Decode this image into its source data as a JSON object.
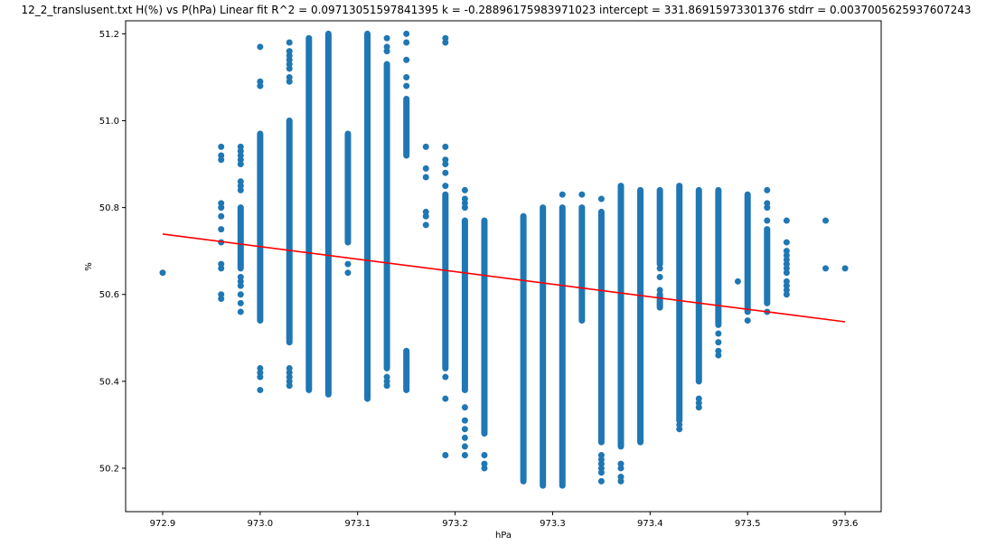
{
  "chart_data": {
    "type": "scatter",
    "title": "12_2_translusent.txt    H(%) vs P(hPa)    Linear fit    R^2 = 0.09713051597841395  k = -0.28896175983971023  intercept = 331.86915973301376  stdrr = 0.0037005625937607243",
    "xlabel": "hPa",
    "ylabel": "%",
    "xlim": [
      972.862,
      973.637
    ],
    "ylim": [
      50.1,
      51.23
    ],
    "xticks": [
      972.9,
      973.0,
      973.1,
      973.2,
      973.3,
      973.4,
      973.5,
      973.6
    ],
    "xtick_labels": [
      "972.9",
      "973.0",
      "973.1",
      "973.2",
      "973.3",
      "973.4",
      "973.5",
      "973.6"
    ],
    "yticks": [
      50.2,
      50.4,
      50.6,
      50.8,
      51.0,
      51.2
    ],
    "ytick_labels": [
      "50.2",
      "50.4",
      "50.6",
      "50.8",
      "51.0",
      "51.2"
    ],
    "grid": false,
    "colors": {
      "points": "#1f77b4",
      "fit": "#ff0000"
    },
    "series": [
      {
        "type": "scatter",
        "columns": [
          {
            "x": 972.9,
            "ymin": 50.65,
            "ymax": 50.65,
            "sparse": [
              50.65
            ]
          },
          {
            "x": 972.96,
            "ymin": 50.59,
            "ymax": 50.94,
            "sparse": [
              50.59,
              50.6,
              50.66,
              50.67,
              50.72,
              50.75,
              50.78,
              50.8,
              50.81,
              50.91,
              50.92,
              50.94
            ]
          },
          {
            "x": 972.98,
            "ymin": 50.56,
            "ymax": 50.94,
            "dense": [
              [
                50.66,
                50.8
              ]
            ],
            "sparse": [
              50.56,
              50.58,
              50.6,
              50.62,
              50.63,
              50.64,
              50.84,
              50.85,
              50.86,
              50.9,
              50.91,
              50.92,
              50.93,
              50.94
            ]
          },
          {
            "x": 973.0,
            "ymin": 50.38,
            "ymax": 51.17,
            "dense": [
              [
                50.54,
                50.97
              ]
            ],
            "sparse": [
              50.38,
              50.41,
              50.42,
              50.43,
              51.08,
              51.09,
              51.17
            ]
          },
          {
            "x": 973.03,
            "ymin": 50.39,
            "ymax": 51.18,
            "dense": [
              [
                50.49,
                51.0
              ]
            ],
            "sparse": [
              50.39,
              50.4,
              50.41,
              50.42,
              50.43,
              51.09,
              51.1,
              51.12,
              51.13,
              51.14,
              51.15,
              51.16,
              51.18
            ]
          },
          {
            "x": 973.05,
            "ymin": 50.38,
            "ymax": 51.19,
            "dense": [
              [
                50.38,
                51.19
              ]
            ]
          },
          {
            "x": 973.07,
            "ymin": 50.37,
            "ymax": 51.2,
            "dense": [
              [
                50.37,
                51.2
              ]
            ]
          },
          {
            "x": 973.09,
            "ymin": 50.65,
            "ymax": 50.97,
            "dense": [
              [
                50.72,
                50.97
              ]
            ],
            "sparse": [
              50.65,
              50.67
            ]
          },
          {
            "x": 973.11,
            "ymin": 50.36,
            "ymax": 51.2,
            "dense": [
              [
                50.36,
                51.2
              ]
            ]
          },
          {
            "x": 973.13,
            "ymin": 50.39,
            "ymax": 51.19,
            "dense": [
              [
                50.43,
                51.13
              ]
            ],
            "sparse": [
              50.39,
              50.4,
              50.41,
              51.16,
              51.17,
              51.19
            ]
          },
          {
            "x": 973.15,
            "ymin": 50.38,
            "ymax": 51.2,
            "dense": [
              [
                50.38,
                50.47
              ],
              [
                50.92,
                51.05
              ]
            ],
            "sparse": [
              51.08,
              51.1,
              51.14,
              51.18,
              51.2
            ]
          },
          {
            "x": 973.17,
            "ymin": 50.76,
            "ymax": 50.94,
            "sparse": [
              50.76,
              50.78,
              50.79,
              50.87,
              50.89,
              50.94
            ]
          },
          {
            "x": 973.19,
            "ymin": 50.23,
            "ymax": 51.19,
            "dense": [
              [
                50.43,
                50.83
              ]
            ],
            "sparse": [
              50.23,
              50.36,
              50.41,
              50.85,
              50.88,
              50.9,
              50.91,
              50.94,
              51.18,
              51.19
            ]
          },
          {
            "x": 973.21,
            "ymin": 50.23,
            "ymax": 50.84,
            "dense": [
              [
                50.38,
                50.77
              ]
            ],
            "sparse": [
              50.23,
              50.25,
              50.27,
              50.29,
              50.31,
              50.34,
              50.8,
              50.81,
              50.82,
              50.84
            ]
          },
          {
            "x": 973.23,
            "ymin": 50.2,
            "ymax": 50.77,
            "dense": [
              [
                50.28,
                50.77
              ]
            ],
            "sparse": [
              50.2,
              50.21,
              50.23
            ]
          },
          {
            "x": 973.27,
            "ymin": 50.17,
            "ymax": 50.78,
            "dense": [
              [
                50.17,
                50.78
              ]
            ]
          },
          {
            "x": 973.29,
            "ymin": 50.16,
            "ymax": 50.8,
            "dense": [
              [
                50.16,
                50.8
              ]
            ]
          },
          {
            "x": 973.31,
            "ymin": 50.16,
            "ymax": 50.83,
            "dense": [
              [
                50.16,
                50.8
              ]
            ],
            "sparse": [
              50.83
            ]
          },
          {
            "x": 973.33,
            "ymin": 50.54,
            "ymax": 50.83,
            "dense": [
              [
                50.54,
                50.8
              ]
            ],
            "sparse": [
              50.83
            ]
          },
          {
            "x": 973.35,
            "ymin": 50.17,
            "ymax": 50.82,
            "dense": [
              [
                50.26,
                50.79
              ]
            ],
            "sparse": [
              50.17,
              50.19,
              50.2,
              50.21,
              50.22,
              50.23,
              50.82
            ]
          },
          {
            "x": 973.37,
            "ymin": 50.17,
            "ymax": 50.85,
            "dense": [
              [
                50.25,
                50.85
              ]
            ],
            "sparse": [
              50.17,
              50.18,
              50.2,
              50.21
            ]
          },
          {
            "x": 973.39,
            "ymin": 50.26,
            "ymax": 50.84,
            "dense": [
              [
                50.26,
                50.84
              ]
            ]
          },
          {
            "x": 973.41,
            "ymin": 50.57,
            "ymax": 50.84,
            "dense": [
              [
                50.57,
                50.6
              ],
              [
                50.67,
                50.84
              ]
            ],
            "sparse": [
              50.61,
              50.64,
              50.66
            ]
          },
          {
            "x": 973.43,
            "ymin": 50.29,
            "ymax": 50.85,
            "dense": [
              [
                50.31,
                50.85
              ]
            ],
            "sparse": [
              50.29,
              50.3
            ]
          },
          {
            "x": 973.45,
            "ymin": 50.34,
            "ymax": 50.84,
            "dense": [
              [
                50.4,
                50.84
              ]
            ],
            "sparse": [
              50.34,
              50.35,
              50.36
            ]
          },
          {
            "x": 973.47,
            "ymin": 50.46,
            "ymax": 50.84,
            "dense": [
              [
                50.53,
                50.84
              ]
            ],
            "sparse": [
              50.46,
              50.47,
              50.49,
              50.51
            ]
          },
          {
            "x": 973.49,
            "ymin": 50.63,
            "ymax": 50.63,
            "sparse": [
              50.63
            ]
          },
          {
            "x": 973.5,
            "ymin": 50.54,
            "ymax": 50.83,
            "dense": [
              [
                50.56,
                50.83
              ]
            ],
            "sparse": [
              50.54
            ]
          },
          {
            "x": 973.52,
            "ymin": 50.56,
            "ymax": 50.84,
            "dense": [
              [
                50.58,
                50.75
              ]
            ],
            "sparse": [
              50.56,
              50.77,
              50.8,
              50.81,
              50.84
            ]
          },
          {
            "x": 973.54,
            "ymin": 50.6,
            "ymax": 50.77,
            "sparse": [
              50.6,
              50.61,
              50.62,
              50.63,
              50.65,
              50.66,
              50.67,
              50.68,
              50.69,
              50.7,
              50.72,
              50.77
            ]
          },
          {
            "x": 973.58,
            "ymin": 50.66,
            "ymax": 50.77,
            "sparse": [
              50.66,
              50.77
            ]
          },
          {
            "x": 973.6,
            "ymin": 50.66,
            "ymax": 50.66,
            "sparse": [
              50.66
            ]
          }
        ]
      },
      {
        "type": "line",
        "x": [
          972.9,
          973.6
        ],
        "y": [
          50.739,
          50.537
        ]
      }
    ]
  }
}
